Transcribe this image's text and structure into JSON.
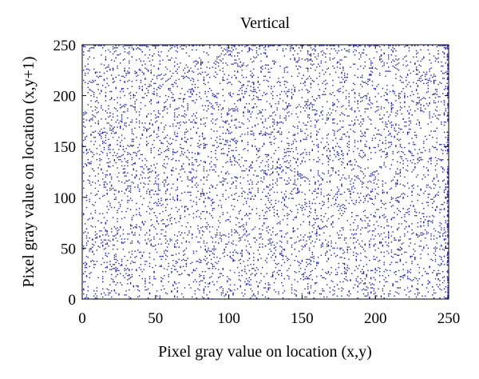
{
  "chart_data": {
    "type": "scatter",
    "title": "Vertical",
    "xlabel": "Pixel gray value on location (x,y)",
    "ylabel": "Pixel gray value on location (x,y+1)",
    "xlim": [
      0,
      250
    ],
    "ylim": [
      0,
      250
    ],
    "xticks": [
      0,
      50,
      100,
      150,
      200,
      250
    ],
    "yticks": [
      0,
      50,
      100,
      150,
      200,
      250
    ],
    "grid": false,
    "point_color": "#1f1fa0",
    "distribution": "uniform",
    "x_domain": [
      0,
      255
    ],
    "y_domain": [
      0,
      255
    ],
    "point_count": 6500
  }
}
